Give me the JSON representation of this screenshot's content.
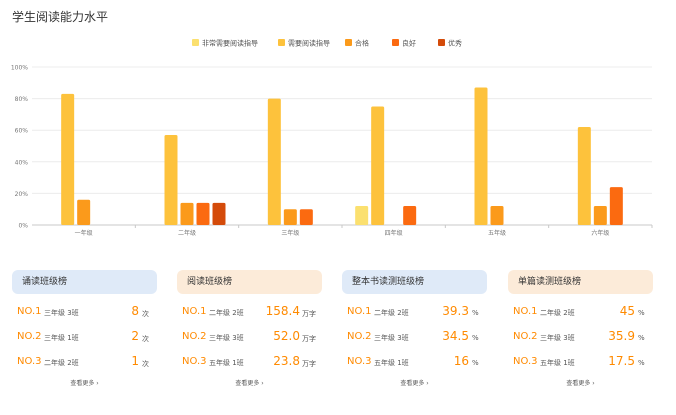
{
  "page": {
    "title": "学生阅读能力水平"
  },
  "chart_data": {
    "type": "bar",
    "categories": [
      "一年级",
      "二年级",
      "三年级",
      "四年级",
      "五年级",
      "六年级"
    ],
    "series": [
      {
        "name": "非常需要阅读指导",
        "color": "#fbe06f",
        "values": [
          0,
          0,
          0,
          12,
          0,
          0
        ]
      },
      {
        "name": "需要阅读指导",
        "color": "#fdc23c",
        "values": [
          83,
          57,
          80,
          75,
          87,
          62
        ]
      },
      {
        "name": "合格",
        "color": "#fb9a1b",
        "values": [
          16,
          14,
          10,
          0,
          12,
          12
        ]
      },
      {
        "name": "良好",
        "color": "#fb6a10",
        "values": [
          0,
          14,
          10,
          12,
          0,
          24
        ]
      },
      {
        "name": "优秀",
        "color": "#d44b0a",
        "values": [
          0,
          14,
          0,
          0,
          0,
          0
        ]
      }
    ],
    "yticks": [
      "0%",
      "20%",
      "40%",
      "60%",
      "80%",
      "100%"
    ],
    "ylim": [
      0,
      100
    ],
    "legend": "top-center",
    "grid": true
  },
  "panels": [
    {
      "title": "诵读班级榜",
      "rows": [
        {
          "rank": "NO.1",
          "cls": "三年级 3班",
          "value": "8",
          "unit": "次"
        },
        {
          "rank": "NO.2",
          "cls": "三年级 1班",
          "value": "2",
          "unit": "次"
        },
        {
          "rank": "NO.3",
          "cls": "二年级 2班",
          "value": "1",
          "unit": "次"
        }
      ],
      "more": "查看更多 ›"
    },
    {
      "title": "阅读班级榜",
      "rows": [
        {
          "rank": "NO.1",
          "cls": "二年级 2班",
          "value": "158.4",
          "unit": "万字"
        },
        {
          "rank": "NO.2",
          "cls": "三年级 3班",
          "value": "52.0",
          "unit": "万字"
        },
        {
          "rank": "NO.3",
          "cls": "五年级 1班",
          "value": "23.8",
          "unit": "万字"
        }
      ],
      "more": "查看更多 ›"
    },
    {
      "title": "整本书读测班级榜",
      "rows": [
        {
          "rank": "NO.1",
          "cls": "二年级 2班",
          "value": "39.3",
          "unit": "%"
        },
        {
          "rank": "NO.2",
          "cls": "三年级 3班",
          "value": "34.5",
          "unit": "%"
        },
        {
          "rank": "NO.3",
          "cls": "五年级 1班",
          "value": "16",
          "unit": "%"
        }
      ],
      "more": "查看更多 ›"
    },
    {
      "title": "单篇读测班级榜",
      "rows": [
        {
          "rank": "NO.1",
          "cls": "二年级 2班",
          "value": "45",
          "unit": "%"
        },
        {
          "rank": "NO.2",
          "cls": "三年级 3班",
          "value": "35.9",
          "unit": "%"
        },
        {
          "rank": "NO.3",
          "cls": "五年级 1班",
          "value": "17.5",
          "unit": "%"
        }
      ],
      "more": "查看更多 ›"
    }
  ]
}
